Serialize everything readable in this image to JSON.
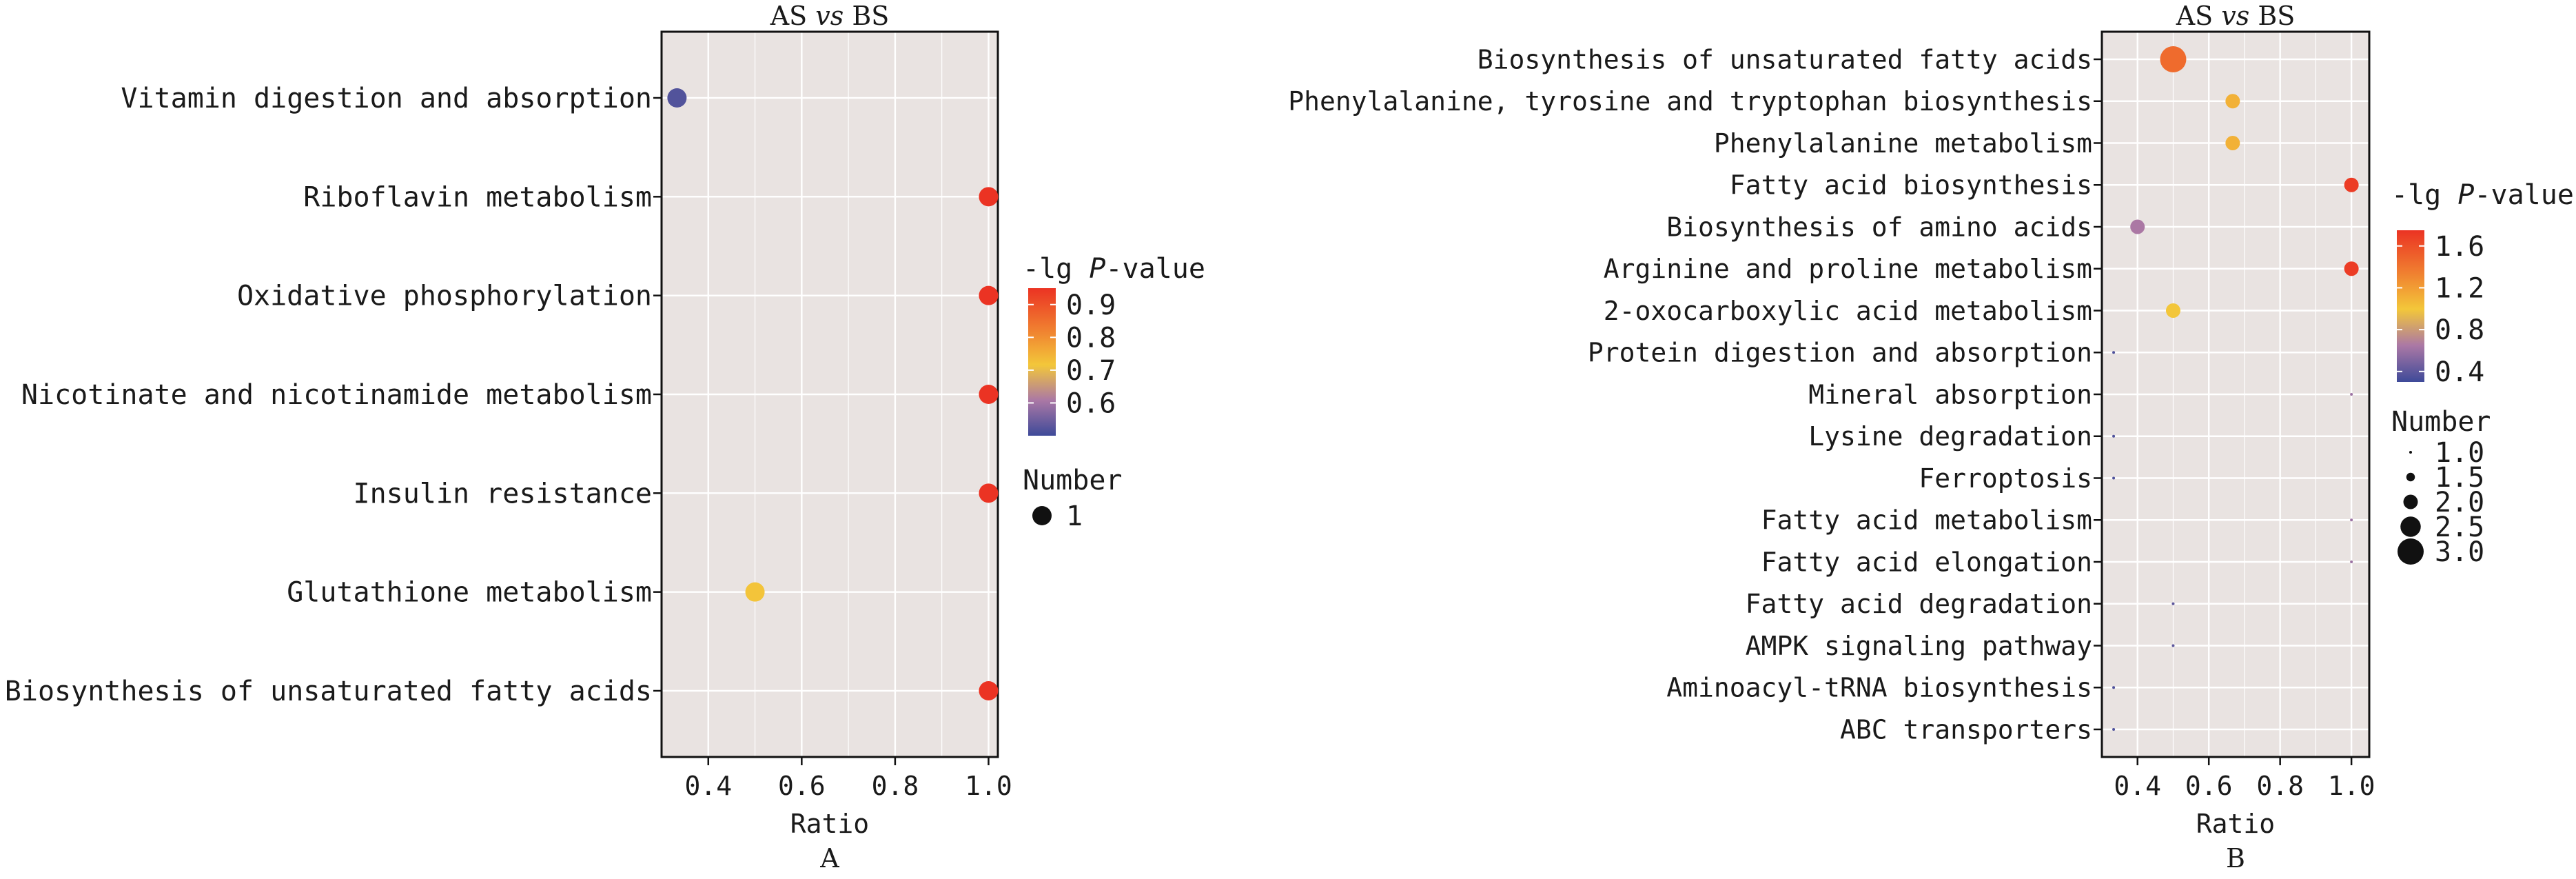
{
  "colors": {
    "panel_bg": "#e9e3e1",
    "grid": "#ffffff",
    "gradient": [
      "#eb3323",
      "#f07f30",
      "#f3c73a",
      "#ab78a5",
      "#3e4a99"
    ]
  },
  "chart_data": [
    {
      "type": "scatter",
      "panel_label": "A",
      "title_prefix": "AS ",
      "title_italic": "vs",
      "title_suffix": " BS",
      "xlabel": "Ratio",
      "ylabel": "",
      "xlim": [
        0.3,
        1.02
      ],
      "xticks": [
        "0.4",
        "0.6",
        "0.8",
        "1.0"
      ],
      "grid": true,
      "categories": [
        "Vitamin digestion and absorption",
        "Riboflavin metabolism",
        "Oxidative phosphorylation",
        "Nicotinate and nicotinamide metabolism",
        "Insulin resistance",
        "Glutathione metabolism",
        "Biosynthesis of unsaturated fatty acids"
      ],
      "points": [
        {
          "ratio": 0.333,
          "neglogp": 0.52,
          "number": 1
        },
        {
          "ratio": 1.0,
          "neglogp": 0.95,
          "number": 1
        },
        {
          "ratio": 1.0,
          "neglogp": 0.95,
          "number": 1
        },
        {
          "ratio": 1.0,
          "neglogp": 0.95,
          "number": 1
        },
        {
          "ratio": 1.0,
          "neglogp": 0.95,
          "number": 1
        },
        {
          "ratio": 0.5,
          "neglogp": 0.72,
          "number": 1
        },
        {
          "ratio": 1.0,
          "neglogp": 0.95,
          "number": 1
        }
      ],
      "color_legend": {
        "title_prefix": "-lg ",
        "title_italic": "P",
        "title_suffix": "-value",
        "range": [
          0.5,
          0.95
        ],
        "ticks": [
          "0.9",
          "0.8",
          "0.7",
          "0.6"
        ]
      },
      "size_legend": {
        "title": "Number",
        "items": [
          "1"
        ]
      },
      "legend_placement": "right"
    },
    {
      "type": "scatter",
      "panel_label": "B",
      "title_prefix": "AS ",
      "title_italic": "vs",
      "title_suffix": " BS",
      "xlabel": "Ratio",
      "ylabel": "",
      "xlim": [
        0.3,
        1.05
      ],
      "xticks": [
        "0.4",
        "0.6",
        "0.8",
        "1.0"
      ],
      "grid": true,
      "categories": [
        "Biosynthesis of unsaturated fatty acids",
        "Phenylalanine, tyrosine and tryptophan biosynthesis",
        "Phenylalanine metabolism",
        "Fatty acid biosynthesis",
        "Biosynthesis of amino acids",
        "Arginine and proline metabolism",
        "2-oxocarboxylic acid metabolism",
        "Protein digestion and absorption",
        "Mineral absorption",
        "Lysine degradation",
        "Ferroptosis",
        "Fatty acid metabolism",
        "Fatty acid elongation",
        "Fatty acid degradation",
        "AMPK signaling pathway",
        "Aminoacyl-tRNA biosynthesis",
        "ABC transporters"
      ],
      "points": [
        {
          "ratio": 0.5,
          "neglogp": 1.45,
          "number": 3
        },
        {
          "ratio": 0.667,
          "neglogp": 1.1,
          "number": 2
        },
        {
          "ratio": 0.667,
          "neglogp": 1.1,
          "number": 2
        },
        {
          "ratio": 1.0,
          "neglogp": 1.7,
          "number": 2
        },
        {
          "ratio": 0.4,
          "neglogp": 0.65,
          "number": 2
        },
        {
          "ratio": 1.0,
          "neglogp": 1.7,
          "number": 2
        },
        {
          "ratio": 0.5,
          "neglogp": 1.0,
          "number": 2
        },
        {
          "ratio": 0.333,
          "neglogp": 0.35,
          "number": 1
        },
        {
          "ratio": 1.0,
          "neglogp": 0.6,
          "number": 1
        },
        {
          "ratio": 0.333,
          "neglogp": 0.35,
          "number": 1
        },
        {
          "ratio": 0.333,
          "neglogp": 0.35,
          "number": 1
        },
        {
          "ratio": 1.0,
          "neglogp": 0.6,
          "number": 1
        },
        {
          "ratio": 1.0,
          "neglogp": 0.6,
          "number": 1
        },
        {
          "ratio": 0.5,
          "neglogp": 0.4,
          "number": 1
        },
        {
          "ratio": 0.5,
          "neglogp": 0.4,
          "number": 1
        },
        {
          "ratio": 0.333,
          "neglogp": 0.35,
          "number": 1
        },
        {
          "ratio": 0.333,
          "neglogp": 0.35,
          "number": 1
        }
      ],
      "color_legend": {
        "title_prefix": "-lg ",
        "title_italic": "P",
        "title_suffix": "-value",
        "range": [
          0.3,
          1.75
        ],
        "ticks": [
          "1.6",
          "1.2",
          "0.8",
          "0.4"
        ]
      },
      "size_legend": {
        "title": "Number",
        "items": [
          "1.0",
          "1.5",
          "2.0",
          "2.5",
          "3.0"
        ]
      },
      "legend_placement": "right"
    }
  ]
}
